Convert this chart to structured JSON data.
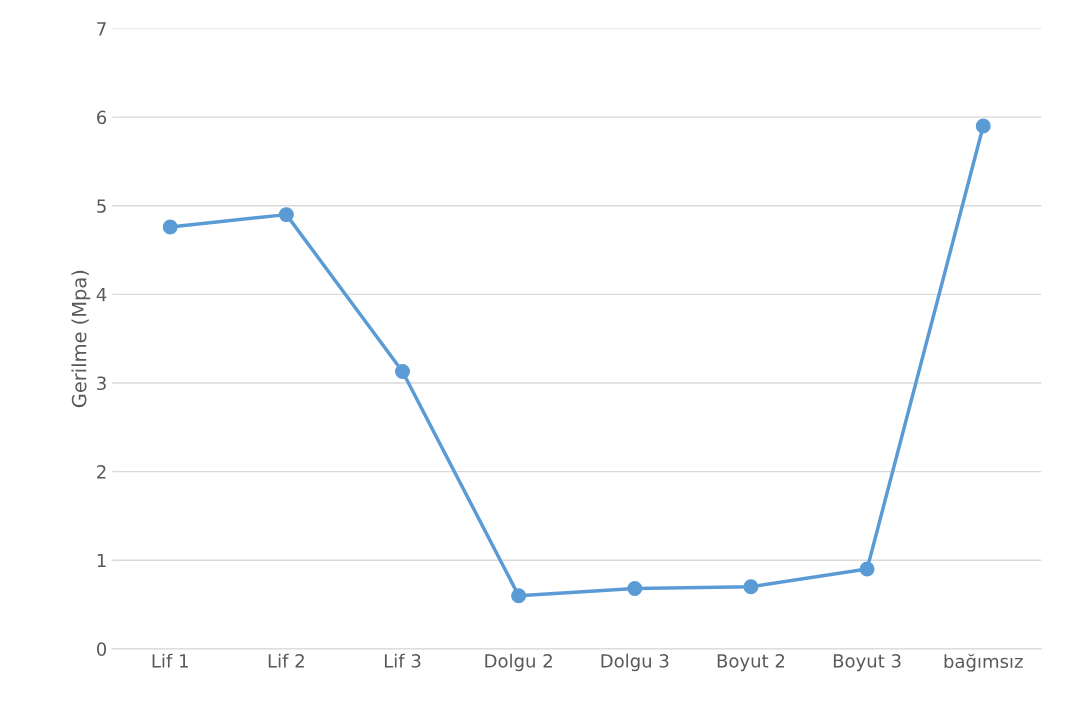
{
  "chart_data": {
    "type": "line",
    "ylabel": "Gerilme (Mpa)",
    "categories": [
      "Lif 1",
      "Lif 2",
      "Lif 3",
      "Dolgu 2",
      "Dolgu 3",
      "Boyut 2",
      "Boyut 3",
      "bağımsız"
    ],
    "series": [
      {
        "color": "#5b9bd5",
        "values": [
          4.76,
          4.9,
          3.13,
          0.6,
          0.68,
          0.7,
          0.9,
          5.9
        ]
      }
    ],
    "ylim": [
      0,
      7
    ],
    "yticks": [
      0,
      1,
      2,
      3,
      4,
      5,
      6,
      7
    ],
    "grid": "y",
    "marker": "circle",
    "line_style": "solid"
  }
}
